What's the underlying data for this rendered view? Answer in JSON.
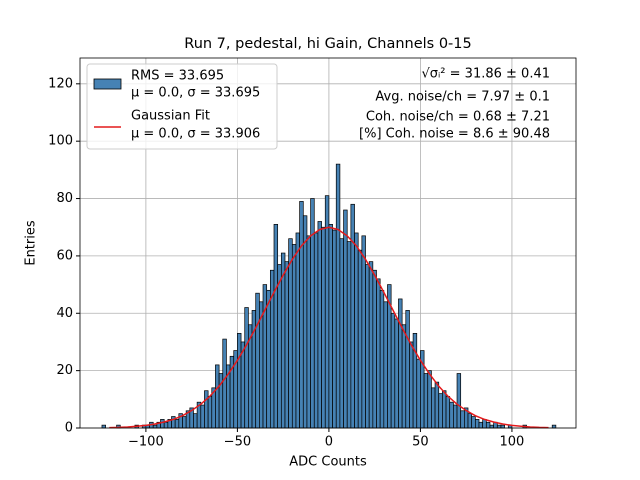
{
  "chart_data": {
    "type": "histogram",
    "title": "Run 7, pedestal, hi Gain, Channels 0-15",
    "xlabel": "ADC Counts",
    "ylabel": "Entries",
    "xlim": [
      -136,
      135
    ],
    "ylim": [
      0,
      129
    ],
    "xticks": [
      {
        "value": -100,
        "label": "−100"
      },
      {
        "value": -50,
        "label": "−50"
      },
      0,
      50,
      100
    ],
    "yticks": [
      0,
      20,
      40,
      60,
      80,
      100,
      120
    ],
    "grid": true,
    "legend": "upper left",
    "annotations": [
      "√σᵢ² = 31.86 ± 0.41",
      "Avg. noise/ch = 7.97 ± 0.1",
      "Coh. noise/ch = 0.68 ± 7.21",
      "[%] Coh. noise = 8.6 ± 90.48"
    ],
    "series": [
      {
        "name": "RMS = 33.695",
        "stats": "μ = 0.0, σ = 33.695",
        "type": "histogram",
        "color": "#4682b4",
        "bins": [
          -124,
          -122,
          -120,
          -118,
          -116,
          -114,
          -112,
          -110,
          -108,
          -106,
          -104,
          -102,
          -100,
          -98,
          -96,
          -94,
          -92,
          -90,
          -88,
          -86,
          -84,
          -82,
          -80,
          -78,
          -76,
          -74,
          -72,
          -70,
          -68,
          -66,
          -64,
          -62,
          -60,
          -58,
          -56,
          -54,
          -52,
          -50,
          -48,
          -46,
          -44,
          -42,
          -40,
          -38,
          -36,
          -34,
          -32,
          -30,
          -28,
          -26,
          -24,
          -22,
          -20,
          -18,
          -16,
          -14,
          -12,
          -10,
          -8,
          -6,
          -4,
          -2,
          0,
          2,
          4,
          6,
          8,
          10,
          12,
          14,
          16,
          18,
          20,
          22,
          24,
          26,
          28,
          30,
          32,
          34,
          36,
          38,
          40,
          42,
          44,
          46,
          48,
          50,
          52,
          54,
          56,
          58,
          60,
          62,
          64,
          66,
          68,
          70,
          72,
          74,
          76,
          78,
          80,
          82,
          84,
          86,
          88,
          90,
          92,
          94,
          96,
          98,
          100,
          102,
          104,
          106,
          108,
          110,
          112,
          114,
          116,
          118,
          120,
          122,
          124
        ],
        "values": [
          1,
          0,
          0,
          0,
          1,
          0,
          0,
          0,
          0,
          1,
          0,
          1,
          1,
          2,
          1,
          2,
          3,
          2,
          3,
          4,
          3,
          5,
          4,
          6,
          7,
          5,
          9,
          8,
          13,
          11,
          14,
          22,
          19,
          31,
          22,
          25,
          27,
          33,
          30,
          42,
          36,
          41,
          47,
          44,
          50,
          48,
          55,
          71,
          57,
          61,
          58,
          66,
          64,
          68,
          79,
          74,
          67,
          80,
          68,
          72,
          70,
          81,
          71,
          69,
          92,
          66,
          76,
          65,
          78,
          68,
          62,
          67,
          57,
          58,
          55,
          52,
          48,
          44,
          50,
          40,
          38,
          45,
          36,
          41,
          30,
          33,
          24,
          27,
          19,
          20,
          14,
          16,
          12,
          13,
          11,
          9,
          8,
          19,
          6,
          7,
          5,
          4,
          3,
          2,
          3,
          2,
          1,
          2,
          1,
          1,
          0,
          1,
          0,
          0,
          0,
          1,
          0,
          0,
          0,
          0,
          0,
          0,
          0,
          1
        ]
      },
      {
        "name": "Gaussian Fit",
        "stats": "μ = 0.0, σ = 33.906",
        "type": "line",
        "color": "#e41a1c",
        "x": [
          -120,
          -115,
          -110,
          -105,
          -100,
          -95,
          -90,
          -85,
          -80,
          -75,
          -70,
          -65,
          -60,
          -55,
          -50,
          -45,
          -40,
          -35,
          -30,
          -25,
          -20,
          -15,
          -10,
          -5,
          0,
          5,
          10,
          15,
          20,
          25,
          30,
          35,
          40,
          45,
          50,
          55,
          60,
          65,
          70,
          75,
          80,
          85,
          90,
          95,
          100,
          105,
          110,
          115,
          120
        ],
        "values": [
          0.13,
          0.2,
          0.36,
          0.6,
          0.9,
          1.4,
          2.1,
          3.0,
          4.3,
          6.1,
          8.3,
          11.1,
          14.6,
          18.8,
          23.6,
          29.0,
          34.9,
          41.1,
          47.3,
          53.3,
          58.8,
          63.5,
          67.0,
          69.2,
          70,
          69.2,
          67.0,
          63.5,
          58.8,
          53.3,
          47.3,
          41.1,
          34.9,
          29.0,
          23.6,
          18.8,
          14.6,
          11.1,
          8.3,
          6.1,
          4.3,
          3.0,
          2.1,
          1.4,
          0.9,
          0.6,
          0.36,
          0.2,
          0.13
        ]
      }
    ]
  }
}
